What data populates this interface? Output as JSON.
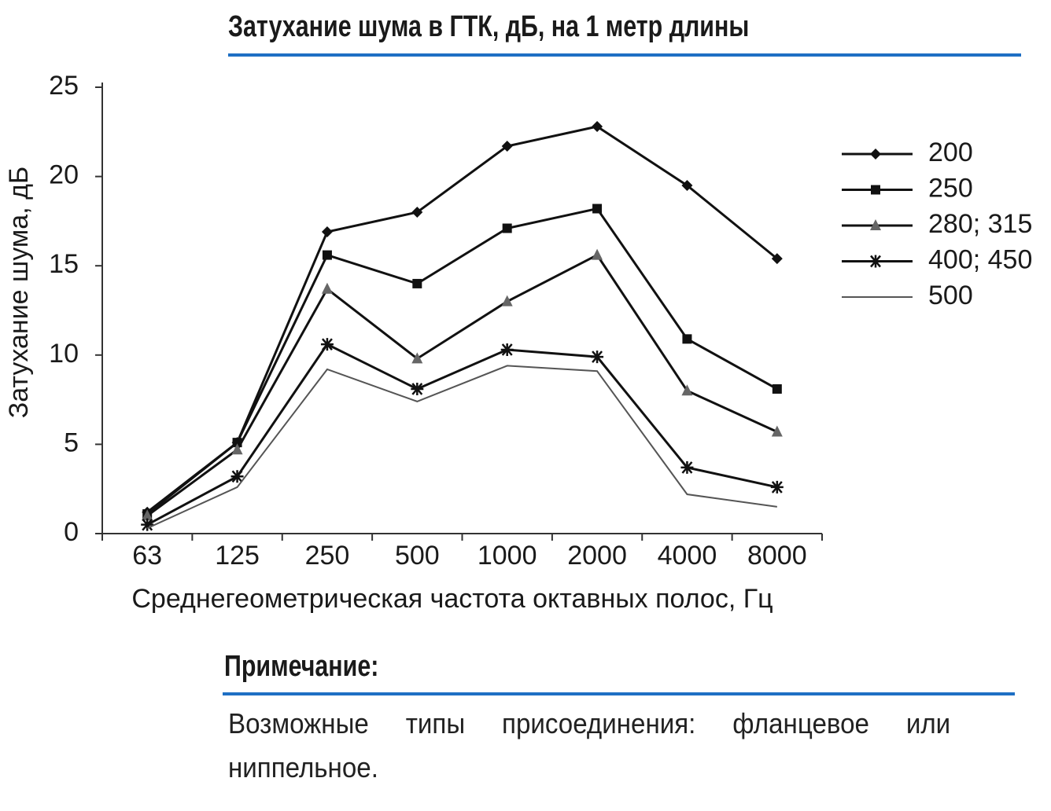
{
  "chart_data": {
    "type": "line",
    "title": "Затухание шума в ГТК, дБ, на 1 метр длины",
    "x_label": "Среднегеометрическая частота октавных полос, Гц",
    "y_label": "Затухание шума, дБ",
    "categories": [
      "63",
      "125",
      "250",
      "500",
      "1000",
      "2000",
      "4000",
      "8000"
    ],
    "ylim": [
      0,
      25
    ],
    "yticks": [
      0,
      5,
      10,
      15,
      20,
      25
    ],
    "legend": "right",
    "series": [
      {
        "name": "200",
        "color": "#111111",
        "marker": "diamond",
        "values": [
          1.2,
          5.1,
          16.9,
          18.0,
          21.7,
          22.8,
          19.5,
          15.4
        ]
      },
      {
        "name": "250",
        "color": "#111111",
        "marker": "square",
        "values": [
          1.1,
          5.1,
          15.6,
          14.0,
          17.1,
          18.2,
          10.9,
          8.1
        ]
      },
      {
        "name": "280; 315",
        "color": "#111111",
        "marker": "triangle",
        "values": [
          1.0,
          4.7,
          13.7,
          9.8,
          13.0,
          15.6,
          8.0,
          5.7
        ]
      },
      {
        "name": "400; 450",
        "color": "#111111",
        "marker": "star",
        "values": [
          0.5,
          3.2,
          10.6,
          8.1,
          10.3,
          9.9,
          3.7,
          2.6
        ]
      },
      {
        "name": "500",
        "color": "#555555",
        "marker": "none",
        "values": [
          0.3,
          2.6,
          9.2,
          7.4,
          9.4,
          9.1,
          2.2,
          1.5
        ]
      }
    ]
  },
  "note": {
    "title": "Примечание:",
    "text": "Возможные типы присоединения: фланцевое или ниппельное."
  }
}
